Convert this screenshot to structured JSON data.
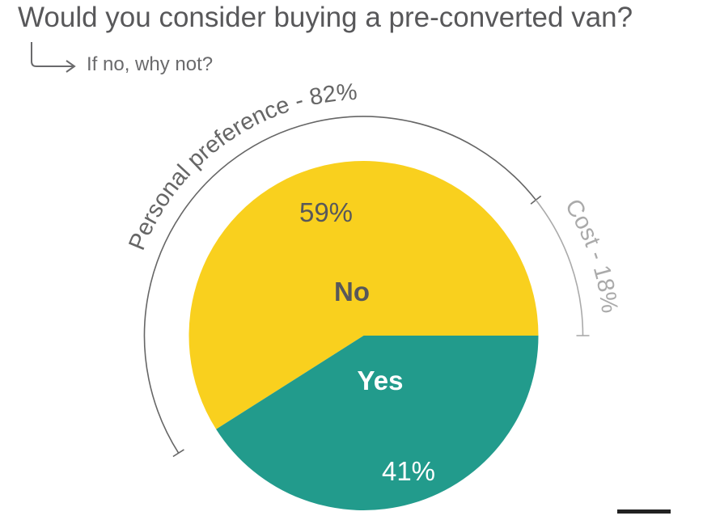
{
  "title": "Would you consider buying a pre-converted van?",
  "subtitle": "If no, why not?",
  "colors": {
    "no": "#f9d01e",
    "yes": "#229b8c",
    "text": "#58585a",
    "arc_main": "#666666",
    "arc_secondary": "#aaaaaa"
  },
  "chart_data": {
    "type": "pie",
    "title": "Would you consider buying a pre-converted van?",
    "subtitle": "If no, why not?",
    "slices": [
      {
        "label": "No",
        "value": 59,
        "value_label": "59%",
        "color": "#f9d01e"
      },
      {
        "label": "Yes",
        "value": 41,
        "value_label": "41%",
        "color": "#229b8c"
      }
    ],
    "breakdown_of": "No",
    "breakdown": [
      {
        "label": "Personal preference - 82%",
        "value": 82
      },
      {
        "label": "Cost - 18%",
        "value": 18
      }
    ]
  }
}
